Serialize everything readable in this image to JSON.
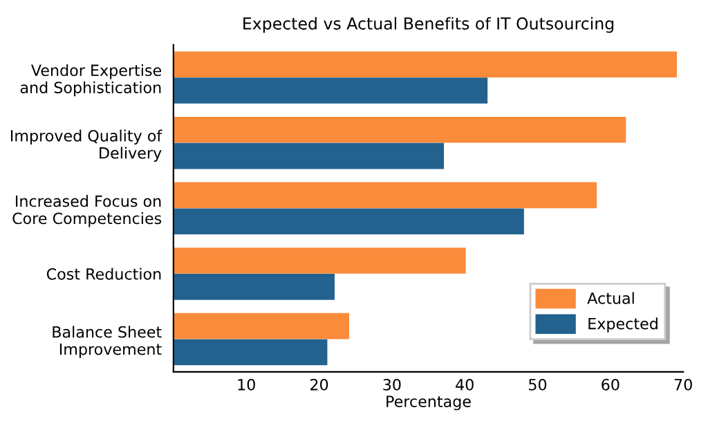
{
  "chart_data": {
    "type": "bar",
    "orientation": "horizontal",
    "title": "Expected vs Actual Benefits of IT Outsourcing",
    "xlabel": "Percentage",
    "categories": [
      "Vendor Expertise\nand Sophistication",
      "Improved Quality of\nDelivery",
      "Increased Focus on\nCore Competencies",
      "Cost Reduction",
      "Balance Sheet\nImprovement"
    ],
    "series": [
      {
        "name": "Actual",
        "color": "#f98b3b",
        "values": [
          69,
          62,
          58,
          40,
          24
        ]
      },
      {
        "name": "Expected",
        "color": "#23628f",
        "values": [
          43,
          37,
          48,
          22,
          21
        ]
      }
    ],
    "xlim": [
      0,
      70
    ],
    "xticks": [
      10,
      20,
      30,
      40,
      50,
      60,
      70
    ],
    "grid": false,
    "legend": "bottom right"
  }
}
